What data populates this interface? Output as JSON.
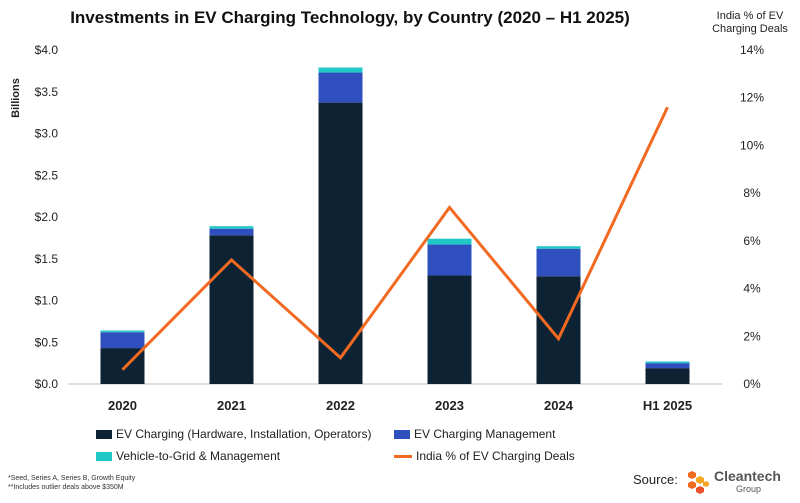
{
  "title": "Investments in EV Charging Technology, by Country (2020 – H1 2025)",
  "right_axis_title_line1": "India % of EV",
  "right_axis_title_line2": "Charging Deals",
  "notes": [
    "*Seed, Series A, Series B, Growth Equity",
    "**Includes outlier deals above $350M"
  ],
  "source_label": "Source:",
  "logo": {
    "name": "Cleantech",
    "sub": "Group"
  },
  "colors": {
    "ev_charging": "#0d2233",
    "management": "#2f4fbf",
    "v2g": "#22c8c8",
    "india_line": "#f26a21"
  },
  "chart_data": {
    "type": "bar",
    "stacked": true,
    "categories": [
      "2020",
      "2021",
      "2022",
      "2023",
      "2024",
      "H1 2025"
    ],
    "ylabel": "Billions",
    "ylim": [
      0,
      4.0
    ],
    "yticks": [
      "$0.0",
      "$0.5",
      "$1.0",
      "$1.5",
      "$2.0",
      "$2.5",
      "$3.0",
      "$3.5",
      "$4.0"
    ],
    "y2lim": [
      0,
      14
    ],
    "y2ticks": [
      "0%",
      "2%",
      "4%",
      "6%",
      "8%",
      "10%",
      "12%",
      "14%"
    ],
    "grid": false,
    "legend_position": "bottom",
    "series": [
      {
        "name": "EV Charging (Hardware, Installation, Operators)",
        "values": [
          0.43,
          1.78,
          3.37,
          1.3,
          1.29,
          0.19
        ],
        "color": "#0d2233"
      },
      {
        "name": "EV Charging Management",
        "values": [
          0.19,
          0.08,
          0.36,
          0.37,
          0.33,
          0.06
        ],
        "color": "#2f4fbf"
      },
      {
        "name": "Vehicle-to-Grid & Management",
        "values": [
          0.02,
          0.03,
          0.06,
          0.07,
          0.03,
          0.02
        ],
        "color": "#22c8c8"
      }
    ],
    "line_series": {
      "name": "India % of EV Charging Deals",
      "axis": "right",
      "values": [
        0.6,
        5.2,
        1.1,
        7.4,
        1.9,
        11.6
      ],
      "color": "#f26a21"
    }
  }
}
